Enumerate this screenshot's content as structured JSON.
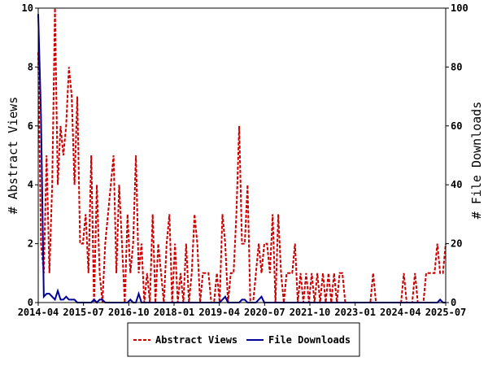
{
  "chart_data": {
    "type": "line",
    "xlabel": "",
    "ylabel_left": "# Abstract Views",
    "ylabel_right": "# File Downloads",
    "ylim_left": [
      0,
      10
    ],
    "ylim_right": [
      0,
      100
    ],
    "yticks_left": [
      "0",
      "2",
      "4",
      "6",
      "8",
      "10"
    ],
    "yticks_right": [
      "0",
      "20",
      "40",
      "60",
      "80",
      "100"
    ],
    "xticks": [
      "2014-04",
      "2015-07",
      "2016-10",
      "2018-01",
      "2019-04",
      "2020-07",
      "2021-10",
      "2023-01",
      "2024-04",
      "2025-07"
    ],
    "legend_position": "bottom-center",
    "grid": false,
    "x_start": "2014-04",
    "x_end": "2025-07",
    "series": [
      {
        "name": "Abstract Views",
        "axis": "left",
        "color": "#cc0000",
        "style": "dashed",
        "values": [
          8.5,
          2,
          1,
          5,
          1,
          4,
          10,
          4,
          6,
          5,
          6,
          8,
          7,
          4,
          7,
          2,
          2,
          3,
          1,
          5,
          0,
          4,
          1,
          0,
          2,
          3,
          4,
          5,
          1,
          4,
          2,
          0,
          3,
          1,
          2,
          5,
          1,
          2,
          0,
          1,
          0,
          3,
          0,
          2,
          1,
          0,
          2,
          3,
          0,
          2,
          0,
          1,
          0,
          2,
          0,
          1,
          3,
          2,
          0,
          1,
          1,
          1,
          0,
          0,
          1,
          0,
          3,
          2,
          0,
          1,
          1,
          3,
          6,
          2,
          2,
          4,
          0,
          0,
          1,
          2,
          1,
          2,
          2,
          1,
          3,
          0,
          3,
          1,
          0,
          1,
          1,
          1,
          2,
          0,
          1,
          0,
          1,
          0,
          1,
          0,
          1,
          0,
          1,
          0,
          1,
          0,
          1,
          0,
          1,
          1,
          0,
          0,
          0,
          0,
          0,
          0,
          0,
          0,
          0,
          0,
          1,
          0,
          0,
          0,
          0,
          0,
          0,
          0,
          0,
          0,
          0,
          1,
          0,
          0,
          0,
          1,
          0,
          0,
          0,
          1,
          1,
          1,
          1,
          2,
          1,
          1,
          2
        ]
      },
      {
        "name": "File Downloads",
        "axis": "right",
        "color": "#000099",
        "style": "solid",
        "values": [
          98,
          63,
          2,
          3,
          3,
          2,
          1,
          4,
          1,
          1,
          2,
          1,
          1,
          1,
          0,
          0,
          0,
          0,
          0,
          0,
          1,
          0,
          1,
          1,
          0,
          0,
          0,
          0,
          0,
          0,
          0,
          0,
          0,
          1,
          0,
          0,
          3,
          0,
          0,
          0,
          0,
          0,
          0,
          0,
          0,
          0,
          0,
          0,
          0,
          0,
          0,
          0,
          0,
          0,
          0,
          0,
          0,
          0,
          0,
          0,
          0,
          0,
          0,
          0,
          0,
          0,
          1,
          2,
          0,
          0,
          0,
          0,
          0,
          1,
          1,
          0,
          0,
          0,
          0,
          1,
          2,
          0,
          0,
          0,
          0,
          0,
          0,
          0,
          0,
          0,
          0,
          0,
          0,
          0,
          0,
          0,
          0,
          0,
          0,
          0,
          0,
          0,
          0,
          0,
          0,
          0,
          0,
          0,
          0,
          0,
          0,
          0,
          0,
          0,
          0,
          0,
          0,
          0,
          0,
          0,
          0,
          0,
          0,
          0,
          0,
          0,
          0,
          0,
          0,
          0,
          0,
          0,
          0,
          0,
          0,
          0,
          0,
          0,
          0,
          0,
          0,
          0,
          0,
          0,
          1,
          0,
          0
        ]
      }
    ]
  }
}
